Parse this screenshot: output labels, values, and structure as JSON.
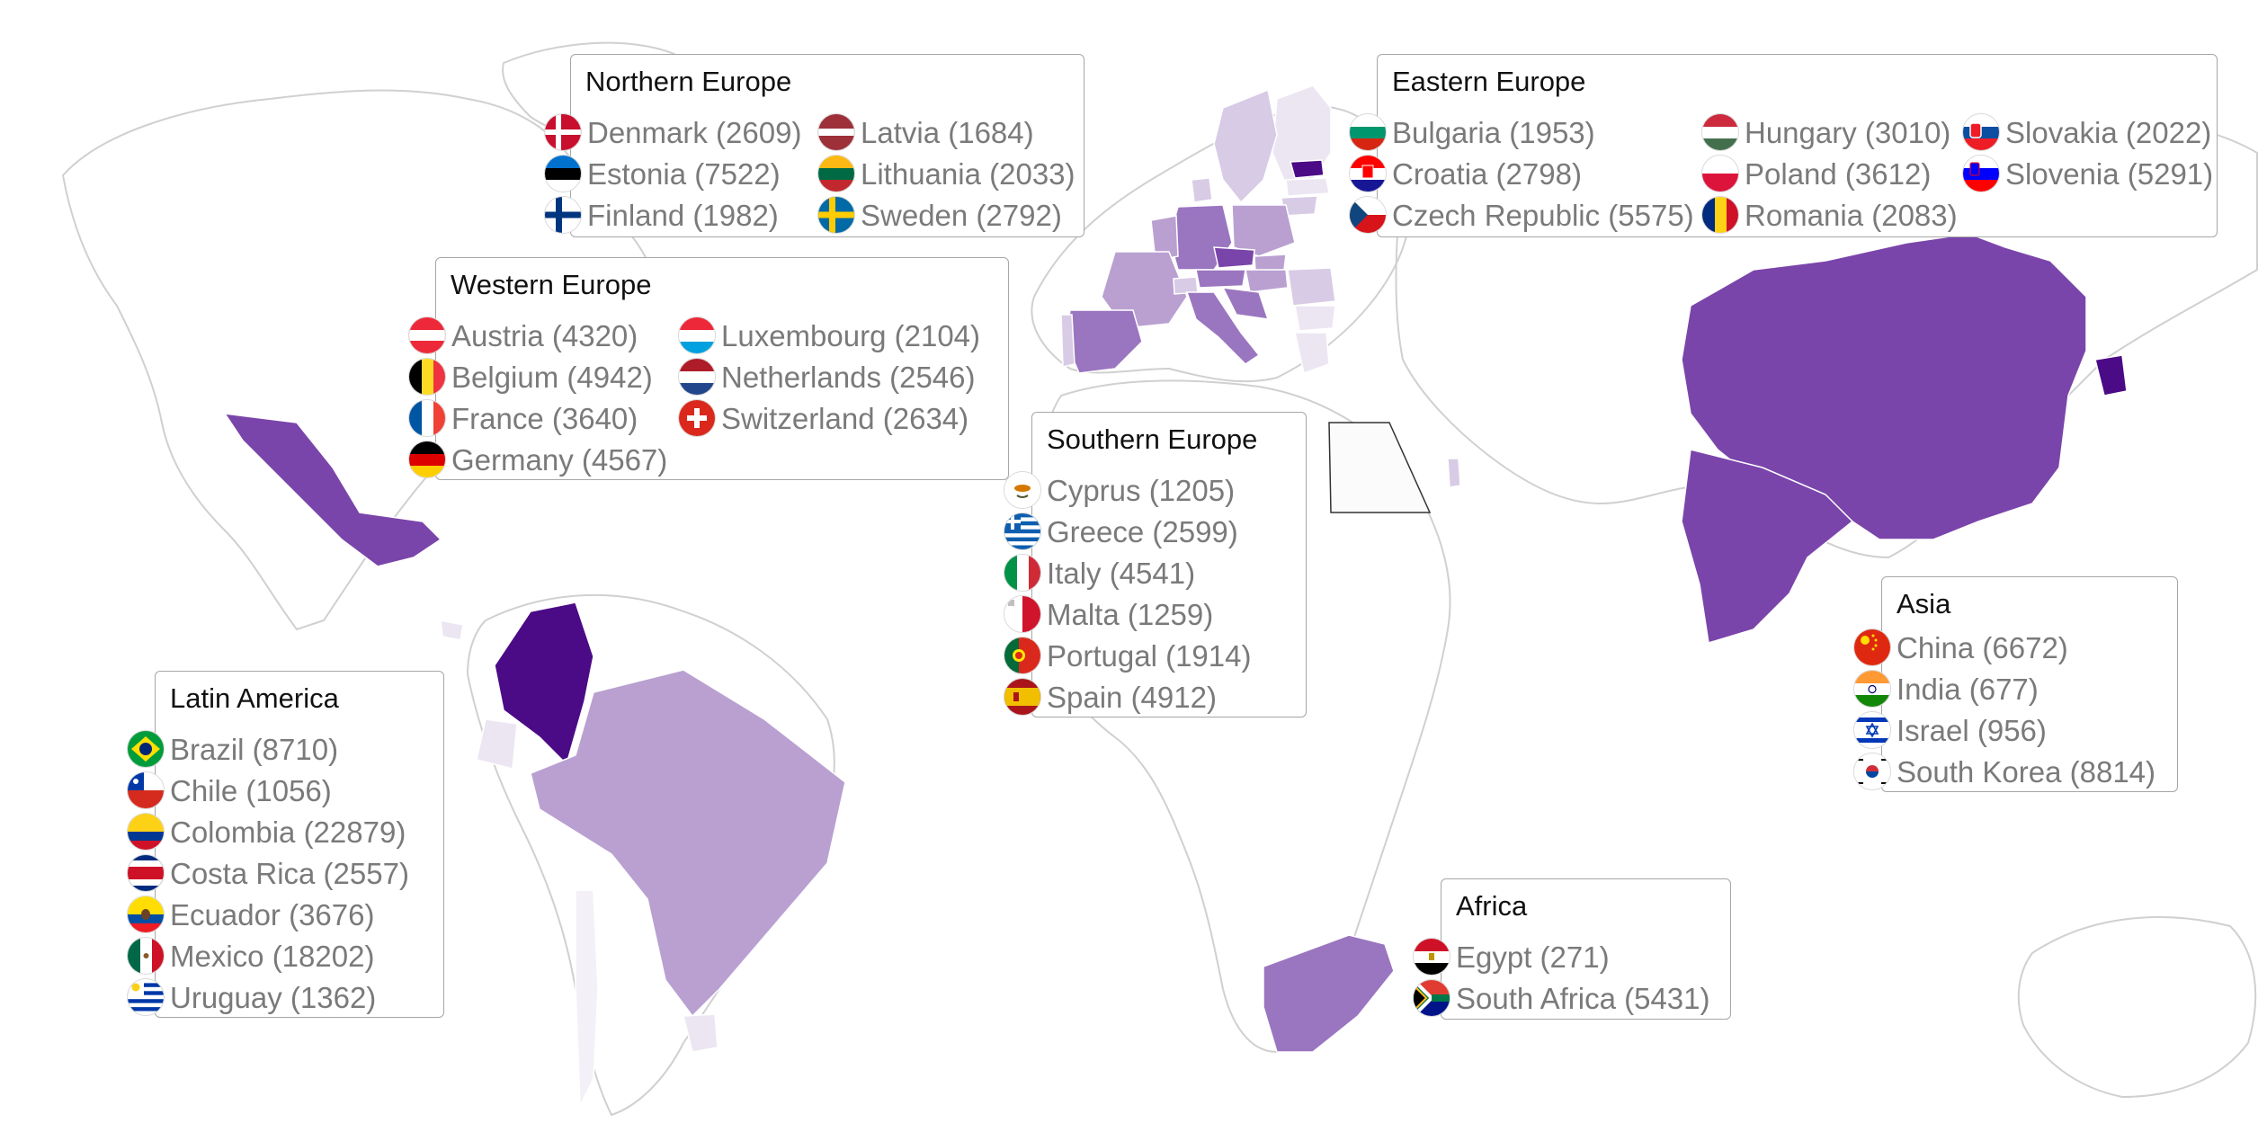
{
  "palette": {
    "lightest": "#ece6f2",
    "light": "#d8cbe6",
    "medium_light": "#b9a0d1",
    "medium": "#9a75c0",
    "strong": "#7a45aa",
    "darkest": "#4b0a86",
    "land_outline": "#d0d0d0",
    "box_border": "#a6a6a6",
    "label_text": "#7a7a7a"
  },
  "regions": [
    {
      "id": "northern-europe",
      "title": "Northern Europe",
      "entries": [
        {
          "label": "Denmark (2609)",
          "flag_icon": "denmark-flag-icon"
        },
        {
          "label": "Estonia (7522)",
          "flag_icon": "estonia-flag-icon"
        },
        {
          "label": "Finland (1982)",
          "flag_icon": "finland-flag-icon"
        },
        {
          "label": "Latvia (1684)",
          "flag_icon": "latvia-flag-icon"
        },
        {
          "label": "Lithuania (2033)",
          "flag_icon": "lithuania-flag-icon"
        },
        {
          "label": "Sweden (2792)",
          "flag_icon": "sweden-flag-icon"
        }
      ]
    },
    {
      "id": "eastern-europe",
      "title": "Eastern Europe",
      "entries": [
        {
          "label": "Bulgaria (1953)",
          "flag_icon": "bulgaria-flag-icon"
        },
        {
          "label": "Croatia (2798)",
          "flag_icon": "croatia-flag-icon"
        },
        {
          "label": "Czech Republic (5575)",
          "flag_icon": "czech-republic-flag-icon"
        },
        {
          "label": "Hungary (3010)",
          "flag_icon": "hungary-flag-icon"
        },
        {
          "label": "Poland (3612)",
          "flag_icon": "poland-flag-icon"
        },
        {
          "label": "Romania (2083)",
          "flag_icon": "romania-flag-icon"
        },
        {
          "label": "Slovakia (2022)",
          "flag_icon": "slovakia-flag-icon"
        },
        {
          "label": "Slovenia (5291)",
          "flag_icon": "slovenia-flag-icon"
        }
      ]
    },
    {
      "id": "western-europe",
      "title": "Western Europe",
      "entries": [
        {
          "label": "Austria (4320)",
          "flag_icon": "austria-flag-icon"
        },
        {
          "label": "Belgium (4942)",
          "flag_icon": "belgium-flag-icon"
        },
        {
          "label": "France (3640)",
          "flag_icon": "france-flag-icon"
        },
        {
          "label": "Germany (4567)",
          "flag_icon": "germany-flag-icon"
        },
        {
          "label": "Luxembourg (2104)",
          "flag_icon": "luxembourg-flag-icon"
        },
        {
          "label": "Netherlands (2546)",
          "flag_icon": "netherlands-flag-icon"
        },
        {
          "label": "Switzerland (2634)",
          "flag_icon": "switzerland-flag-icon"
        }
      ]
    },
    {
      "id": "southern-europe",
      "title": "Southern Europe",
      "entries": [
        {
          "label": "Cyprus (1205)",
          "flag_icon": "cyprus-flag-icon"
        },
        {
          "label": "Greece (2599)",
          "flag_icon": "greece-flag-icon"
        },
        {
          "label": "Italy (4541)",
          "flag_icon": "italy-flag-icon"
        },
        {
          "label": "Malta (1259)",
          "flag_icon": "malta-flag-icon"
        },
        {
          "label": "Portugal (1914)",
          "flag_icon": "portugal-flag-icon"
        },
        {
          "label": "Spain (4912)",
          "flag_icon": "spain-flag-icon"
        }
      ]
    },
    {
      "id": "asia",
      "title": "Asia",
      "entries": [
        {
          "label": "China (6672)",
          "flag_icon": "china-flag-icon"
        },
        {
          "label": "India (677)",
          "flag_icon": "india-flag-icon"
        },
        {
          "label": "Israel (956)",
          "flag_icon": "israel-flag-icon"
        },
        {
          "label": "South Korea (8814)",
          "flag_icon": "south-korea-flag-icon"
        }
      ]
    },
    {
      "id": "latin-america",
      "title": "Latin America",
      "entries": [
        {
          "label": "Brazil (8710)",
          "flag_icon": "brazil-flag-icon"
        },
        {
          "label": "Chile (1056)",
          "flag_icon": "chile-flag-icon"
        },
        {
          "label": "Colombia (22879)",
          "flag_icon": "colombia-flag-icon"
        },
        {
          "label": "Costa Rica (2557)",
          "flag_icon": "costa-rica-flag-icon"
        },
        {
          "label": "Ecuador (3676)",
          "flag_icon": "ecuador-flag-icon"
        },
        {
          "label": "Mexico (18202)",
          "flag_icon": "mexico-flag-icon"
        },
        {
          "label": "Uruguay (1362)",
          "flag_icon": "uruguay-flag-icon"
        }
      ]
    },
    {
      "id": "africa",
      "title": "Africa",
      "entries": [
        {
          "label": "Egypt (271)",
          "flag_icon": "egypt-flag-icon"
        },
        {
          "label": "South Africa (5431)",
          "flag_icon": "south-africa-flag-icon"
        }
      ]
    }
  ]
}
